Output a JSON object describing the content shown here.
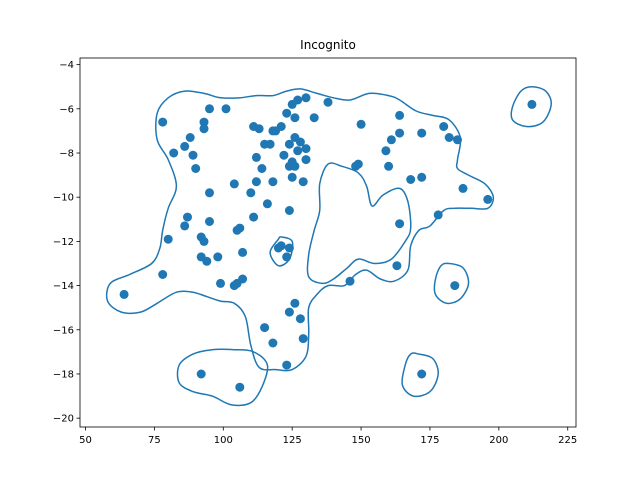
{
  "chart_data": {
    "type": "scatter",
    "title": "Incognito",
    "xlabel": "",
    "ylabel": "",
    "xlim": [
      48,
      228
    ],
    "ylim": [
      -20.4,
      -3.7
    ],
    "xticks": [
      50,
      75,
      100,
      125,
      150,
      175,
      200,
      225
    ],
    "yticks": [
      -20,
      -18,
      -16,
      -14,
      -12,
      -10,
      -8,
      -6,
      -4
    ],
    "xtick_labels": [
      "50",
      "75",
      "100",
      "125",
      "150",
      "175",
      "200",
      "225"
    ],
    "ytick_labels": [
      "−20",
      "−18",
      "−16",
      "−14",
      "−12",
      "−10",
      "−8",
      "−6",
      "−4"
    ],
    "grid": false,
    "colors": {
      "points": "#1f77b4",
      "contour": "#1f77b4",
      "axes": "#000000"
    },
    "points": [
      [
        212,
        -5.8
      ],
      [
        130,
        -5.5
      ],
      [
        127,
        -5.6
      ],
      [
        138,
        -5.7
      ],
      [
        125,
        -5.8
      ],
      [
        95,
        -6.0
      ],
      [
        101,
        -6.0
      ],
      [
        123,
        -6.2
      ],
      [
        164,
        -6.3
      ],
      [
        133,
        -6.4
      ],
      [
        126,
        -6.4
      ],
      [
        78,
        -6.6
      ],
      [
        93,
        -6.6
      ],
      [
        150,
        -6.7
      ],
      [
        180,
        -6.8
      ],
      [
        111,
        -6.8
      ],
      [
        113,
        -6.9
      ],
      [
        121,
        -6.8
      ],
      [
        93,
        -6.9
      ],
      [
        119,
        -7.0
      ],
      [
        118,
        -7.0
      ],
      [
        164,
        -7.1
      ],
      [
        172,
        -7.1
      ],
      [
        126,
        -7.3
      ],
      [
        88,
        -7.3
      ],
      [
        182,
        -7.3
      ],
      [
        185,
        -7.4
      ],
      [
        161,
        -7.4
      ],
      [
        128,
        -7.5
      ],
      [
        124,
        -7.6
      ],
      [
        117,
        -7.6
      ],
      [
        115,
        -7.6
      ],
      [
        86,
        -7.7
      ],
      [
        130,
        -7.8
      ],
      [
        127,
        -7.9
      ],
      [
        159,
        -7.9
      ],
      [
        82,
        -8.0
      ],
      [
        122,
        -8.1
      ],
      [
        89,
        -8.1
      ],
      [
        112,
        -8.2
      ],
      [
        130,
        -8.3
      ],
      [
        125,
        -8.4
      ],
      [
        149,
        -8.5
      ],
      [
        148,
        -8.6
      ],
      [
        160,
        -8.6
      ],
      [
        126,
        -8.6
      ],
      [
        124,
        -8.6
      ],
      [
        114,
        -8.7
      ],
      [
        90,
        -8.7
      ],
      [
        125,
        -9.1
      ],
      [
        172,
        -9.1
      ],
      [
        168,
        -9.2
      ],
      [
        112,
        -9.3
      ],
      [
        118,
        -9.3
      ],
      [
        129,
        -9.3
      ],
      [
        104,
        -9.4
      ],
      [
        187,
        -9.6
      ],
      [
        95,
        -9.8
      ],
      [
        110,
        -9.8
      ],
      [
        196,
        -10.1
      ],
      [
        116,
        -10.3
      ],
      [
        124,
        -10.6
      ],
      [
        178,
        -10.8
      ],
      [
        87,
        -10.9
      ],
      [
        111,
        -10.9
      ],
      [
        95,
        -11.1
      ],
      [
        164,
        -11.2
      ],
      [
        86,
        -11.3
      ],
      [
        106,
        -11.4
      ],
      [
        105,
        -11.5
      ],
      [
        92,
        -11.8
      ],
      [
        80,
        -11.9
      ],
      [
        93,
        -12.0
      ],
      [
        121,
        -12.2
      ],
      [
        120,
        -12.3
      ],
      [
        124,
        -12.3
      ],
      [
        107,
        -12.5
      ],
      [
        92,
        -12.7
      ],
      [
        123,
        -12.7
      ],
      [
        98,
        -12.7
      ],
      [
        94,
        -12.9
      ],
      [
        163,
        -13.1
      ],
      [
        78,
        -13.5
      ],
      [
        107,
        -13.7
      ],
      [
        146,
        -13.8
      ],
      [
        99,
        -13.9
      ],
      [
        105,
        -13.9
      ],
      [
        104,
        -14.0
      ],
      [
        184,
        -14.0
      ],
      [
        64,
        -14.4
      ],
      [
        126,
        -14.8
      ],
      [
        124,
        -15.2
      ],
      [
        128,
        -15.5
      ],
      [
        115,
        -15.9
      ],
      [
        129,
        -16.4
      ],
      [
        118,
        -16.6
      ],
      [
        123,
        -17.6
      ],
      [
        92,
        -18.0
      ],
      [
        172,
        -18.0
      ],
      [
        106,
        -18.6
      ]
    ],
    "contours": [
      [
        [
          140,
          -5.5
        ],
        [
          146,
          -5.6
        ],
        [
          153,
          -5.3
        ],
        [
          160,
          -5.4
        ],
        [
          164,
          -5.6
        ],
        [
          170,
          -6.1
        ],
        [
          176,
          -6.3
        ],
        [
          182,
          -6.5
        ],
        [
          186,
          -7.3
        ],
        [
          185,
          -8.3
        ],
        [
          185,
          -8.7
        ],
        [
          189,
          -9.0
        ],
        [
          195,
          -9.4
        ],
        [
          198,
          -10.0
        ],
        [
          196,
          -10.5
        ],
        [
          190,
          -10.5
        ],
        [
          184,
          -10.5
        ],
        [
          180,
          -10.6
        ],
        [
          175,
          -11.3
        ],
        [
          171,
          -11.5
        ],
        [
          168,
          -12.2
        ],
        [
          167,
          -13.3
        ],
        [
          162,
          -13.8
        ],
        [
          157,
          -13.7
        ],
        [
          152,
          -13.3
        ],
        [
          148,
          -13.5
        ],
        [
          144,
          -14.0
        ],
        [
          138,
          -14.0
        ],
        [
          134,
          -14.4
        ],
        [
          131,
          -15.0
        ],
        [
          131,
          -16.2
        ],
        [
          130,
          -17.2
        ],
        [
          125,
          -17.8
        ],
        [
          119,
          -17.8
        ],
        [
          113,
          -17.7
        ],
        [
          110,
          -16.7
        ],
        [
          108,
          -15.4
        ],
        [
          104,
          -14.8
        ],
        [
          99,
          -14.7
        ],
        [
          94,
          -14.5
        ],
        [
          89,
          -14.3
        ],
        [
          83,
          -14.3
        ],
        [
          76,
          -14.8
        ],
        [
          70,
          -15.2
        ],
        [
          63,
          -15.2
        ],
        [
          58,
          -14.7
        ],
        [
          59,
          -13.9
        ],
        [
          66,
          -13.5
        ],
        [
          74,
          -13.0
        ],
        [
          77,
          -12.3
        ],
        [
          78,
          -11.5
        ],
        [
          80,
          -10.5
        ],
        [
          83,
          -9.5
        ],
        [
          80,
          -8.3
        ],
        [
          76,
          -7.4
        ],
        [
          76,
          -6.2
        ],
        [
          80,
          -5.5
        ],
        [
          86,
          -5.2
        ],
        [
          93,
          -5.3
        ],
        [
          99,
          -5.5
        ],
        [
          106,
          -5.5
        ],
        [
          112,
          -5.4
        ],
        [
          118,
          -5.4
        ],
        [
          123,
          -5.2
        ],
        [
          128,
          -5.1
        ],
        [
          134,
          -5.3
        ],
        [
          140,
          -5.5
        ]
      ],
      [
        [
          120,
          -11.9
        ],
        [
          117,
          -12.5
        ],
        [
          120,
          -13.1
        ],
        [
          124,
          -12.8
        ],
        [
          125,
          -12.0
        ],
        [
          121,
          -11.8
        ],
        [
          120,
          -11.9
        ]
      ],
      [
        [
          138,
          -8.5
        ],
        [
          143,
          -8.6
        ],
        [
          149,
          -8.9
        ],
        [
          152,
          -9.5
        ],
        [
          154,
          -10.4
        ],
        [
          158,
          -9.9
        ],
        [
          164,
          -9.6
        ],
        [
          167,
          -10.2
        ],
        [
          168,
          -11.4
        ],
        [
          166,
          -12.0
        ],
        [
          161,
          -12.8
        ],
        [
          155,
          -13.0
        ],
        [
          149,
          -12.8
        ],
        [
          145,
          -13.2
        ],
        [
          140,
          -13.7
        ],
        [
          136,
          -13.9
        ],
        [
          131,
          -13.6
        ],
        [
          131,
          -12.6
        ],
        [
          133,
          -11.5
        ],
        [
          135,
          -10.6
        ],
        [
          135,
          -9.4
        ],
        [
          138,
          -8.5
        ]
      ],
      [
        [
          212,
          -5.0
        ],
        [
          217,
          -5.2
        ],
        [
          219,
          -5.8
        ],
        [
          216,
          -6.6
        ],
        [
          210,
          -6.8
        ],
        [
          205,
          -6.5
        ],
        [
          205,
          -5.9
        ],
        [
          208,
          -5.2
        ],
        [
          212,
          -5.0
        ]
      ],
      [
        [
          182,
          -13.0
        ],
        [
          187,
          -13.2
        ],
        [
          189,
          -13.9
        ],
        [
          186,
          -14.6
        ],
        [
          181,
          -14.8
        ],
        [
          177,
          -14.4
        ],
        [
          177,
          -13.7
        ],
        [
          179,
          -13.1
        ],
        [
          182,
          -13.0
        ]
      ],
      [
        [
          171,
          -17.1
        ],
        [
          176,
          -17.3
        ],
        [
          178,
          -18.0
        ],
        [
          175,
          -18.8
        ],
        [
          169,
          -19.0
        ],
        [
          165,
          -18.5
        ],
        [
          166,
          -17.6
        ],
        [
          168,
          -17.1
        ],
        [
          171,
          -17.1
        ]
      ],
      [
        [
          96,
          -16.9
        ],
        [
          104,
          -16.9
        ],
        [
          111,
          -17.0
        ],
        [
          116,
          -17.6
        ],
        [
          114,
          -18.6
        ],
        [
          110,
          -19.3
        ],
        [
          103,
          -19.4
        ],
        [
          96,
          -19.0
        ],
        [
          89,
          -18.8
        ],
        [
          84,
          -18.4
        ],
        [
          84,
          -17.6
        ],
        [
          89,
          -17.1
        ],
        [
          96,
          -16.9
        ]
      ]
    ]
  }
}
